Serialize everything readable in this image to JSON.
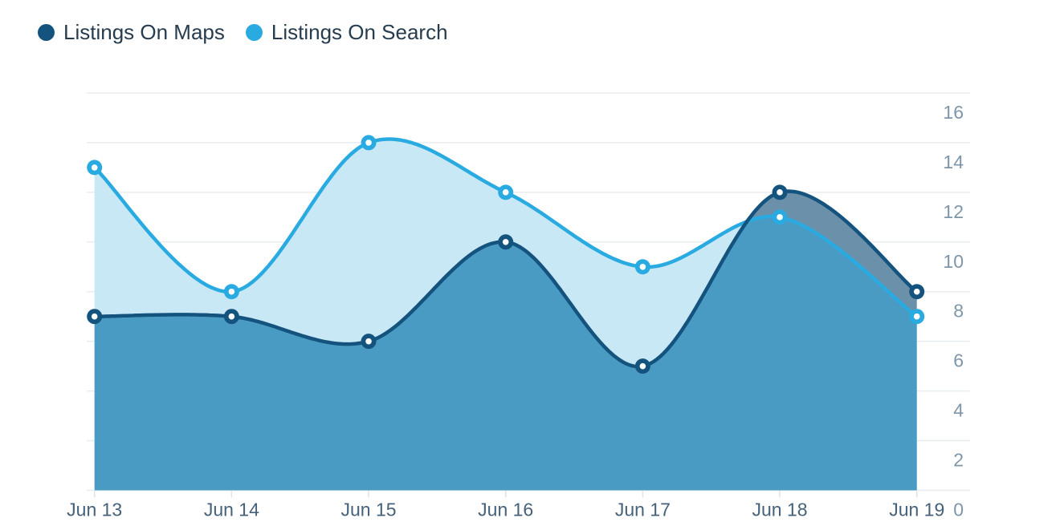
{
  "chart_data": {
    "type": "area",
    "smoothed": true,
    "categories": [
      "Jun 13",
      "Jun 14",
      "Jun 15",
      "Jun 16",
      "Jun 17",
      "Jun 18",
      "Jun 19"
    ],
    "series": [
      {
        "name": "Listings On Maps",
        "values": [
          7,
          7,
          6,
          10,
          5,
          12,
          8
        ],
        "color": "#15537F"
      },
      {
        "name": "Listings On Search",
        "values": [
          13,
          8,
          14,
          12,
          9,
          11,
          7
        ],
        "color": "#29ABE2"
      }
    ],
    "xlabel": "",
    "ylabel": "",
    "ylim": [
      0,
      16
    ],
    "yticks": [
      0,
      2,
      4,
      6,
      8,
      10,
      12,
      14,
      16
    ],
    "grid": true,
    "legend_position": "top-left",
    "y_axis_side": "right"
  },
  "colors": {
    "maps_line": "#15537F",
    "search_line": "#29ABE2",
    "search_area_fill": "#C9E8F6",
    "maps_area_fill": "#4A9BC3",
    "overlap_area_fill": "#6B90A9",
    "marker_center": "#FFFFFF",
    "gridline": "#E8EDF2",
    "axis_tick": "#DCE3E9",
    "y_label_text": "#7E96A9",
    "x_label_text": "#46627B",
    "legend_text": "#273C4E",
    "background": "#FFFFFF"
  }
}
